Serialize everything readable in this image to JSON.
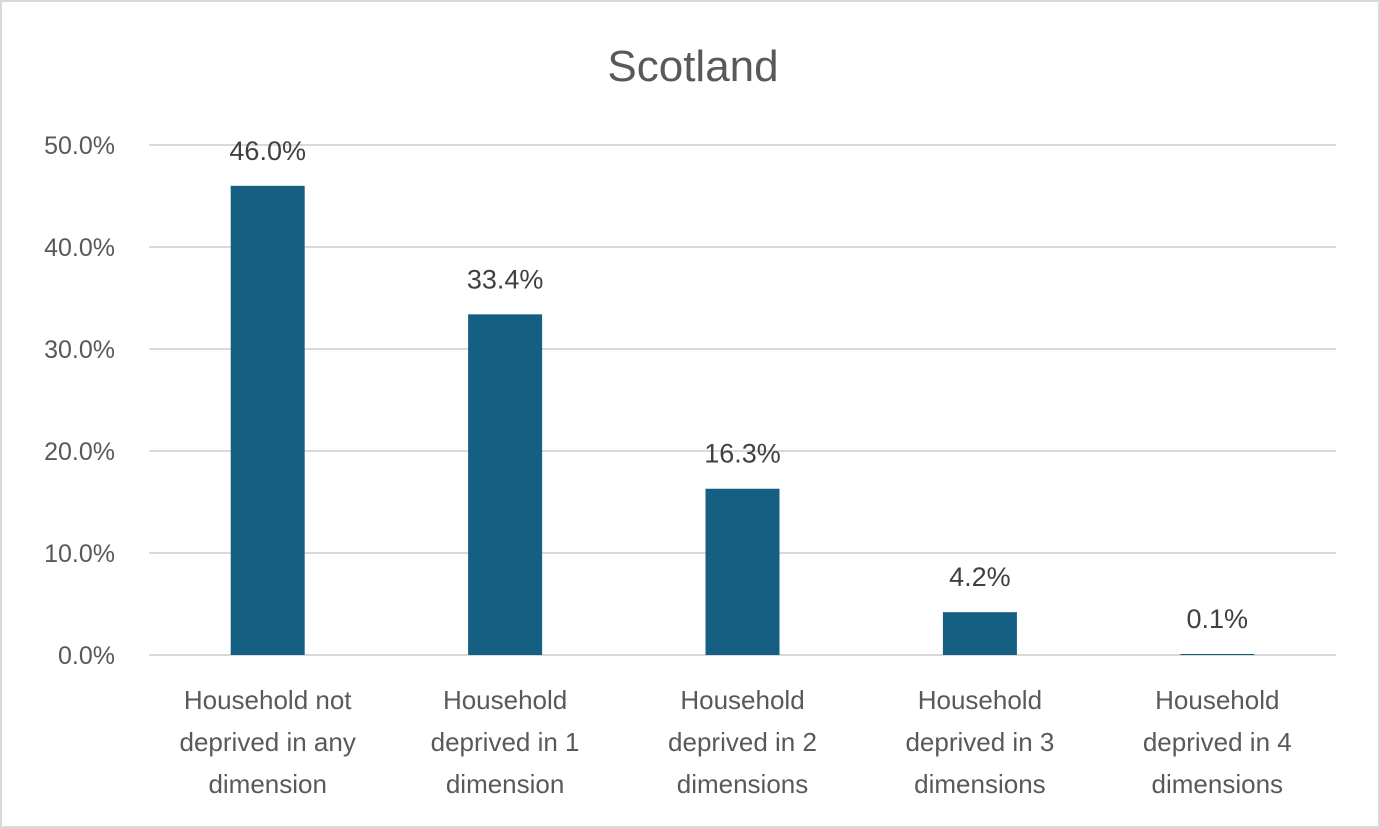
{
  "chart_data": {
    "type": "bar",
    "title": "Scotland",
    "xlabel": "",
    "ylabel": "",
    "categories": [
      [
        "Household not",
        "deprived in any",
        "dimension"
      ],
      [
        "Household",
        "deprived in 1",
        "dimension"
      ],
      [
        "Household",
        "deprived in 2",
        "dimensions"
      ],
      [
        "Household",
        "deprived in 3",
        "dimensions"
      ],
      [
        "Household",
        "deprived in 4",
        "dimensions"
      ]
    ],
    "values": [
      46.0,
      33.4,
      16.3,
      4.2,
      0.1
    ],
    "data_labels": [
      "46.0%",
      "33.4%",
      "16.3%",
      "4.2%",
      "0.1%"
    ],
    "yticks": [
      "0.0%",
      "10.0%",
      "20.0%",
      "30.0%",
      "40.0%",
      "50.0%"
    ],
    "ylim": [
      0,
      50
    ],
    "grid": true,
    "legend": "none",
    "bar_color": "#155f83"
  }
}
